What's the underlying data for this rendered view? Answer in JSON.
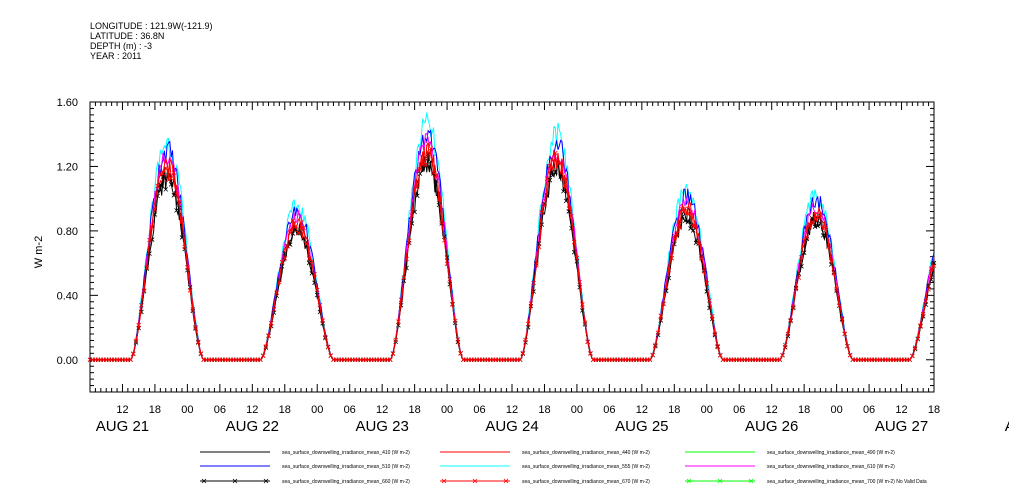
{
  "header": {
    "longitude": "LONGITUDE : 121.9W(-121.9)",
    "latitude": "LATITUDE : 36.8N",
    "depth": "DEPTH (m) : -3",
    "year": "YEAR : 2011"
  },
  "colors": {
    "black": "#000000",
    "blue": "#0000ff",
    "cyan": "#00ffff",
    "red": "#ff0000",
    "green": "#00ff00",
    "magenta": "#ff00ff"
  },
  "chart_data": {
    "type": "line",
    "ylabel": "W m-2",
    "ylim": [
      -0.2,
      1.6
    ],
    "yticks": [
      "0.00",
      "0.40",
      "0.80",
      "1.20",
      "1.60"
    ],
    "x_range_hours": [
      0,
      156
    ],
    "hour_tick_labels": [
      "12",
      "18",
      "00",
      "06",
      "12",
      "18",
      "00",
      "06",
      "12",
      "18",
      "00",
      "06",
      "12",
      "18",
      "00",
      "06",
      "12",
      "18",
      "00",
      "06",
      "12",
      "18",
      "00",
      "06",
      "12",
      "18",
      "00",
      "06",
      "12",
      "18",
      "00",
      "06"
    ],
    "day_labels": [
      "AUG 21",
      "AUG 22",
      "AUG 23",
      "AUG 24",
      "AUG 25",
      "AUG 26",
      "AUG 27",
      "AUG 28"
    ],
    "daily_peaks": [
      {
        "day": "AUG 21",
        "max": 1.25
      },
      {
        "day": "AUG 22",
        "max": 0.88
      },
      {
        "day": "AUG 23",
        "max": 1.35
      },
      {
        "day": "AUG 24",
        "max": 1.3
      },
      {
        "day": "AUG 25",
        "max": 0.98
      },
      {
        "day": "AUG 26",
        "max": 0.95
      },
      {
        "day": "AUG 27",
        "max": 0.8
      }
    ],
    "series": [
      {
        "name": "sea_surface_downwelling_irradiance_mean_410 (W m-2)",
        "color": "black",
        "scale": 0.92
      },
      {
        "name": "sea_surface_downwelling_irradiance_mean_440 (W m-2)",
        "color": "red",
        "scale": 0.96
      },
      {
        "name": "sea_surface_downwelling_irradiance_mean_490 (W m-2)",
        "color": "green",
        "scale": 1.0
      },
      {
        "name": "sea_surface_downwelling_irradiance_mean_510 (W m-2)",
        "color": "blue",
        "scale": 1.04
      },
      {
        "name": "sea_surface_downwelling_irradiance_mean_555 (W m-2)",
        "color": "cyan",
        "scale": 1.08
      },
      {
        "name": "sea_surface_downwelling_irradiance_mean_610 (W m-2)",
        "color": "magenta",
        "scale": 1.0
      },
      {
        "name": "sea_surface_downwelling_irradiance_mean_660 (W m-2)",
        "color": "black",
        "scale": 0.9,
        "marker": "x"
      },
      {
        "name": "sea_surface_downwelling_irradiance_mean_670 (W m-2)",
        "color": "red",
        "scale": 0.95,
        "marker": "x"
      },
      {
        "name": "sea_surface_downwelling_irradiance_mean_700 (W m-2) No Valid Data",
        "color": "green",
        "marker": "x"
      }
    ]
  }
}
